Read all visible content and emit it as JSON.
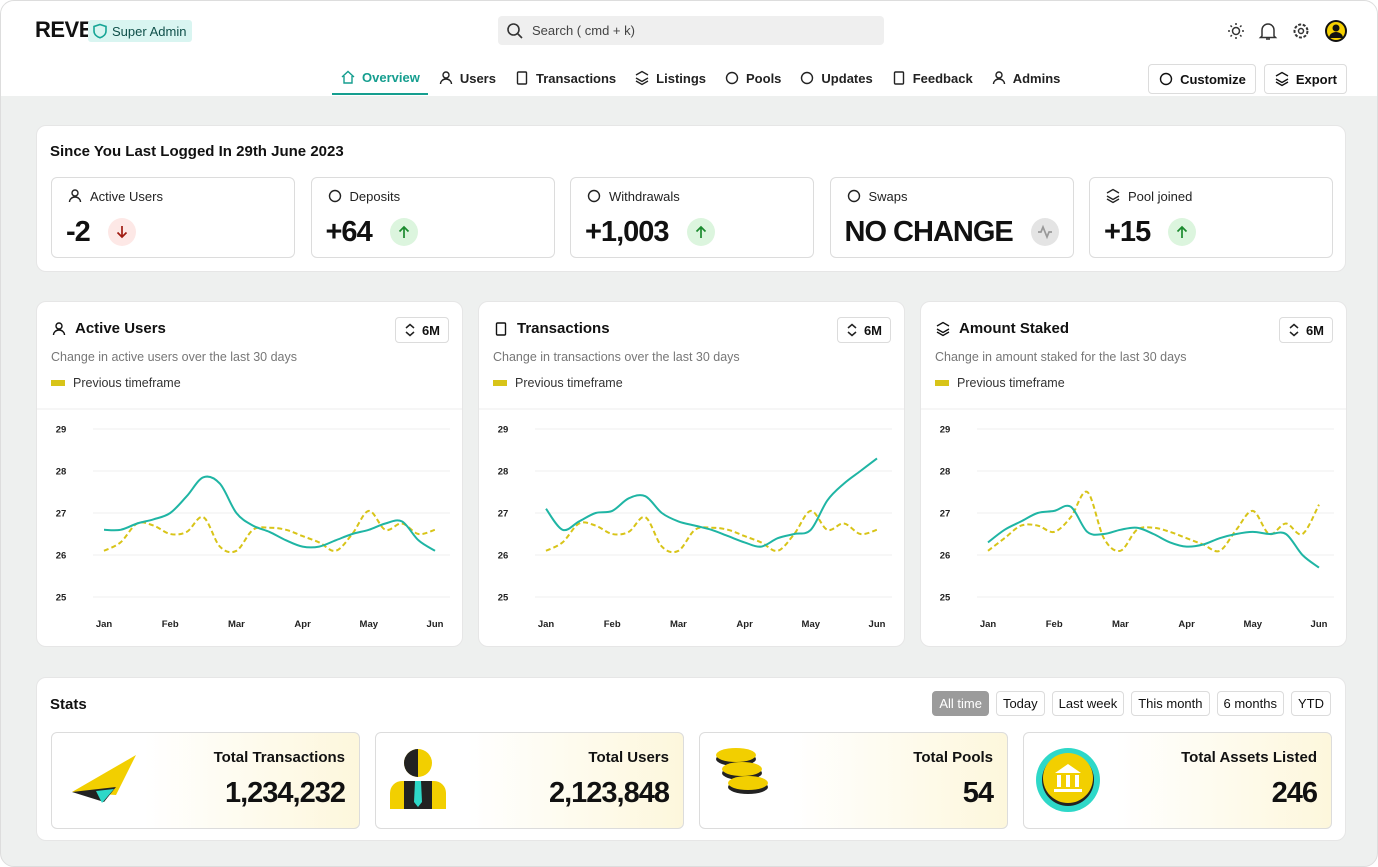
{
  "header": {
    "brand": "REVE",
    "role": "Super Admin",
    "search": "Search ( cmd + k)",
    "nav": [
      "Overview",
      "Users",
      "Transactions",
      "Listings",
      "Pools",
      "Updates",
      "Feedback",
      "Admins"
    ],
    "actions": [
      "Customize",
      "Export"
    ]
  },
  "summary": {
    "title": "Since You Last Logged In 29th June 2023",
    "cards": [
      {
        "label": "Active Users",
        "value": "-2",
        "trend": "down"
      },
      {
        "label": "Deposits",
        "value": "+64",
        "trend": "up"
      },
      {
        "label": "Withdrawals",
        "value": "+1,003",
        "trend": "up"
      },
      {
        "label": "Swaps",
        "value": "NO CHANGE",
        "trend": "none"
      },
      {
        "label": "Pool joined",
        "value": "+15",
        "trend": "up"
      }
    ]
  },
  "chart_data": [
    {
      "type": "line",
      "title": "Active Users",
      "subtitle": "Change in active users over the last 30 days",
      "period": "6M",
      "x": [
        0,
        0.25,
        0.5,
        0.75,
        1,
        1.25,
        1.5,
        1.75,
        2,
        2.25,
        2.5,
        2.75,
        3,
        3.25,
        3.5,
        3.75,
        4,
        4.25,
        4.5,
        4.75,
        5
      ],
      "xlim": [
        0,
        5
      ],
      "xticks": [
        {
          "value": 0,
          "label": "Jan"
        },
        {
          "value": 1,
          "label": "Feb"
        },
        {
          "value": 2,
          "label": "Mar"
        },
        {
          "value": 3,
          "label": "Apr"
        },
        {
          "value": 4,
          "label": "May"
        },
        {
          "value": 5,
          "label": "Jun"
        }
      ],
      "ylim": [
        25,
        29
      ],
      "yticks": [
        25,
        26,
        27,
        28,
        29
      ],
      "grid": true,
      "series": [
        {
          "color": "#1fb5a4",
          "values": [
            26.6,
            26.6,
            26.75,
            26.85,
            27.0,
            27.4,
            27.85,
            27.7,
            27.0,
            26.7,
            26.55,
            26.35,
            26.2,
            26.2,
            26.35,
            26.5,
            26.6,
            26.75,
            26.8,
            26.35,
            26.1
          ]
        },
        {
          "name": "Previous timeframe",
          "color": "#d8c418",
          "dashed": true,
          "values": [
            26.1,
            26.3,
            26.75,
            26.7,
            26.5,
            26.55,
            26.9,
            26.2,
            26.1,
            26.6,
            26.65,
            26.6,
            26.45,
            26.3,
            26.1,
            26.5,
            27.05,
            26.6,
            26.75,
            26.5,
            26.6
          ]
        }
      ]
    },
    {
      "type": "line",
      "title": "Transactions",
      "subtitle": "Change in transactions over the last 30 days",
      "period": "6M",
      "x": [
        0,
        0.25,
        0.5,
        0.75,
        1,
        1.25,
        1.5,
        1.75,
        2,
        2.25,
        2.5,
        2.75,
        3,
        3.25,
        3.5,
        3.75,
        4,
        4.25,
        4.5,
        4.75,
        5
      ],
      "xlim": [
        0,
        5
      ],
      "xticks": [
        {
          "value": 0,
          "label": "Jan"
        },
        {
          "value": 1,
          "label": "Feb"
        },
        {
          "value": 2,
          "label": "Mar"
        },
        {
          "value": 3,
          "label": "Apr"
        },
        {
          "value": 4,
          "label": "May"
        },
        {
          "value": 5,
          "label": "Jun"
        }
      ],
      "ylim": [
        25,
        29
      ],
      "yticks": [
        25,
        26,
        27,
        28,
        29
      ],
      "grid": true,
      "series": [
        {
          "color": "#1fb5a4",
          "values": [
            27.1,
            26.6,
            26.8,
            27.0,
            27.05,
            27.35,
            27.4,
            27.0,
            26.8,
            26.7,
            26.6,
            26.45,
            26.3,
            26.2,
            26.4,
            26.5,
            26.6,
            27.3,
            27.7,
            28.0,
            28.3
          ]
        },
        {
          "name": "Previous timeframe",
          "color": "#d8c418",
          "dashed": true,
          "values": [
            26.1,
            26.3,
            26.75,
            26.7,
            26.5,
            26.55,
            26.9,
            26.2,
            26.1,
            26.6,
            26.65,
            26.6,
            26.45,
            26.3,
            26.1,
            26.5,
            27.05,
            26.6,
            26.75,
            26.5,
            26.6
          ]
        }
      ]
    },
    {
      "type": "line",
      "title": "Amount Staked",
      "subtitle": "Change in amount staked for the last 30 days",
      "period": "6M",
      "x": [
        0,
        0.25,
        0.5,
        0.75,
        1,
        1.25,
        1.5,
        1.75,
        2,
        2.25,
        2.5,
        2.75,
        3,
        3.25,
        3.5,
        3.75,
        4,
        4.25,
        4.5,
        4.75,
        5
      ],
      "xlim": [
        0,
        5
      ],
      "xticks": [
        {
          "value": 0,
          "label": "Jan"
        },
        {
          "value": 1,
          "label": "Feb"
        },
        {
          "value": 2,
          "label": "Mar"
        },
        {
          "value": 3,
          "label": "Apr"
        },
        {
          "value": 4,
          "label": "May"
        },
        {
          "value": 5,
          "label": "Jun"
        }
      ],
      "ylim": [
        25,
        29
      ],
      "yticks": [
        25,
        26,
        27,
        28,
        29
      ],
      "grid": true,
      "series": [
        {
          "color": "#1fb5a4",
          "values": [
            26.3,
            26.6,
            26.8,
            27.0,
            27.05,
            27.15,
            26.55,
            26.5,
            26.6,
            26.65,
            26.5,
            26.3,
            26.2,
            26.25,
            26.4,
            26.5,
            26.55,
            26.5,
            26.5,
            26.0,
            25.7
          ]
        },
        {
          "name": "Previous timeframe",
          "color": "#d8c418",
          "dashed": true,
          "values": [
            26.1,
            26.4,
            26.7,
            26.7,
            26.55,
            26.9,
            27.5,
            26.4,
            26.1,
            26.6,
            26.65,
            26.55,
            26.4,
            26.25,
            26.1,
            26.6,
            27.05,
            26.5,
            26.75,
            26.5,
            27.2
          ]
        }
      ]
    }
  ],
  "stats": {
    "title": "Stats",
    "filters": [
      "All time",
      "Today",
      "Last week",
      "This month",
      "6 months",
      "YTD"
    ],
    "cards": [
      {
        "label": "Total Transactions",
        "value": "1,234,232"
      },
      {
        "label": "Total Users",
        "value": "2,123,848"
      },
      {
        "label": "Total Pools",
        "value": "54"
      },
      {
        "label": "Total Assets Listed",
        "value": "246"
      }
    ]
  }
}
